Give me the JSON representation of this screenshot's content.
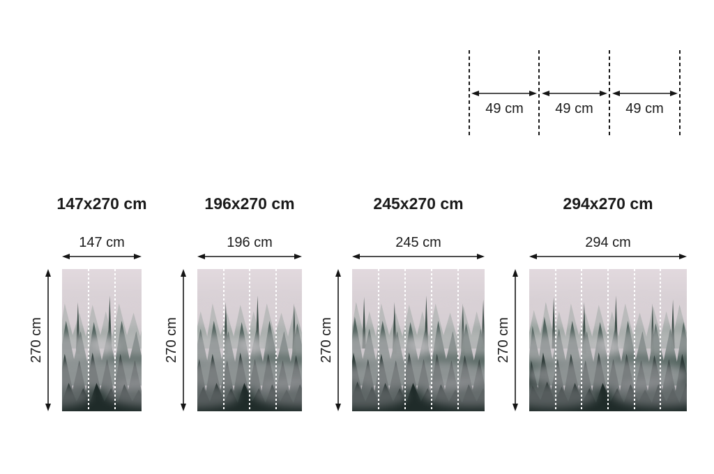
{
  "panel_guide": {
    "segments": [
      "49 cm",
      "49 cm",
      "49 cm"
    ]
  },
  "sizes": [
    {
      "title": "147x270 cm",
      "width_label": "147 cm",
      "height_label": "270 cm",
      "panels": 3
    },
    {
      "title": "196x270 cm",
      "width_label": "196 cm",
      "height_label": "270 cm",
      "panels": 4
    },
    {
      "title": "245x270 cm",
      "width_label": "245 cm",
      "height_label": "270 cm",
      "panels": 5
    },
    {
      "title": "294x270 cm",
      "width_label": "294 cm",
      "height_label": "270 cm",
      "panels": 6
    }
  ],
  "colors": {
    "text": "#1a1a1a",
    "dimension_lines": "#141414",
    "panel_divider": "#ffffff",
    "mural_sky": "#e2d9de",
    "mural_trees_dark": "#1f2b29"
  }
}
